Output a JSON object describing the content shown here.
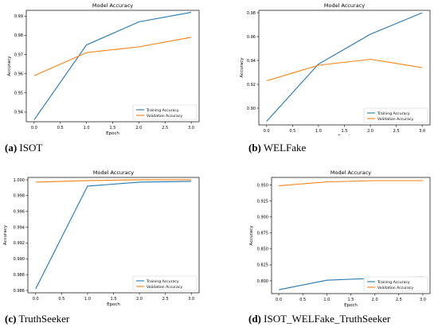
{
  "colors": {
    "training": "#1f77b4",
    "validation": "#ff7f0e",
    "axis": "#000000"
  },
  "chart_data": [
    {
      "type": "line",
      "title": "Model Accuracy",
      "xlabel": "Epoch",
      "ylabel": "Accuracy",
      "caption_label": "(a)",
      "caption_text": "ISOT",
      "legend_position": "lower-right",
      "grid": false,
      "x": [
        0,
        1,
        2,
        3
      ],
      "xticks": [
        "0.0",
        "0.5",
        "1.0",
        "1.5",
        "2.0",
        "2.5",
        "3.0"
      ],
      "yticks": [
        "0.94",
        "0.95",
        "0.96",
        "0.97",
        "0.98",
        "0.99"
      ],
      "ylim": [
        0.935,
        0.993
      ],
      "series": [
        {
          "name": "Training Accuracy",
          "values": [
            0.936,
            0.975,
            0.987,
            0.992
          ]
        },
        {
          "name": "Validation Accuracy",
          "values": [
            0.959,
            0.971,
            0.974,
            0.979
          ]
        }
      ]
    },
    {
      "type": "line",
      "title": "Model Accuracy",
      "xlabel": "Epoch",
      "ylabel": "Accuracy",
      "caption_label": "(b)",
      "caption_text": "WELFake",
      "legend_position": "lower-right",
      "grid": false,
      "x": [
        0,
        1,
        2,
        3
      ],
      "xticks": [
        "0.0",
        "0.5",
        "1.0",
        "1.5",
        "2.0",
        "2.5",
        "3.0"
      ],
      "yticks": [
        "0.90",
        "0.92",
        "0.94",
        "0.96",
        "0.98"
      ],
      "ylim": [
        0.886,
        0.982
      ],
      "series": [
        {
          "name": "Training Accuracy",
          "values": [
            0.889,
            0.937,
            0.962,
            0.98
          ]
        },
        {
          "name": "Validation Accuracy",
          "values": [
            0.923,
            0.936,
            0.941,
            0.934
          ]
        }
      ]
    },
    {
      "type": "line",
      "title": "Model Accuracy",
      "xlabel": "Epoch",
      "ylabel": "Accuracy",
      "caption_label": "(c)",
      "caption_text": "TruthSeeker",
      "legend_position": "lower-right",
      "grid": false,
      "x": [
        0,
        1,
        2,
        3
      ],
      "xticks": [
        "0.0",
        "0.5",
        "1.0",
        "1.5",
        "2.0",
        "2.5",
        "3.0"
      ],
      "yticks": [
        "0.986",
        "0.988",
        "0.990",
        "0.992",
        "0.994",
        "0.996",
        "0.998",
        "1.000"
      ],
      "ylim": [
        0.9857,
        1.0003
      ],
      "series": [
        {
          "name": "Training Accuracy",
          "values": [
            0.9862,
            0.9992,
            0.9997,
            0.9998
          ]
        },
        {
          "name": "Validation Accuracy",
          "values": [
            0.9997,
            0.9999,
            1.0,
            1.0
          ]
        }
      ]
    },
    {
      "type": "line",
      "title": "Model Accuracy",
      "xlabel": "Epoch",
      "ylabel": "Accuracy",
      "caption_label": "(d)",
      "caption_text": "ISOT_WELFake_TruthSeeker",
      "legend_position": "lower-right",
      "grid": false,
      "x": [
        0,
        1,
        2,
        3
      ],
      "xticks": [
        "0.0",
        "0.5",
        "1.0",
        "1.5",
        "2.0",
        "2.5",
        "3.0"
      ],
      "yticks": [
        "0.800",
        "0.825",
        "0.850",
        "0.875",
        "0.900",
        "0.925",
        "0.950"
      ],
      "ylim": [
        0.78,
        0.962
      ],
      "series": [
        {
          "name": "Training Accuracy",
          "values": [
            0.786,
            0.801,
            0.804,
            0.806
          ]
        },
        {
          "name": "Validation Accuracy",
          "values": [
            0.949,
            0.955,
            0.957,
            0.957
          ]
        }
      ]
    }
  ]
}
